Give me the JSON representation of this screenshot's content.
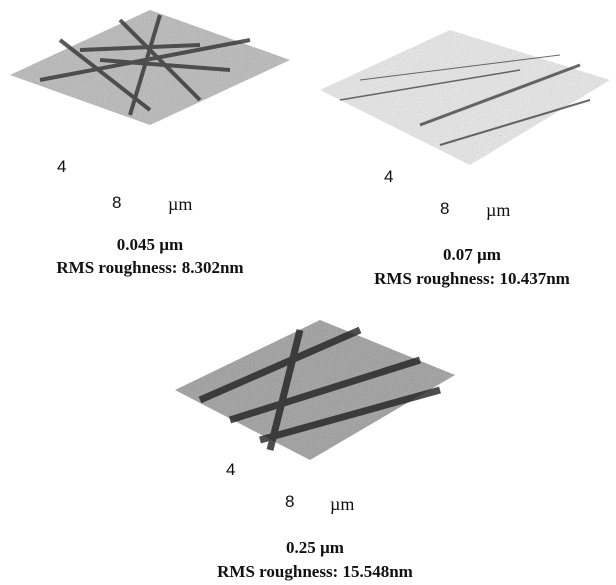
{
  "panels": [
    {
      "axis_labels": [
        "4",
        "8",
        "µm"
      ],
      "thickness": "0.045 µm",
      "roughness": "RMS roughness: 8.302nm"
    },
    {
      "axis_labels": [
        "4",
        "8",
        "µm"
      ],
      "thickness": "0.07 µm",
      "roughness": "RMS roughness: 10.437nm"
    },
    {
      "axis_labels": [
        "4",
        "8",
        "µm"
      ],
      "thickness": "0.25 µm",
      "roughness": "RMS roughness: 15.548nm"
    }
  ]
}
